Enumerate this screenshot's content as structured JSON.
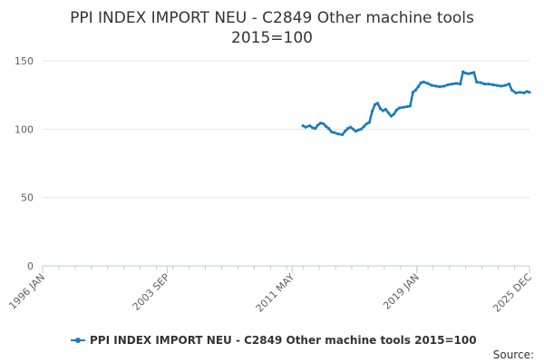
{
  "chart_data": {
    "type": "line",
    "title": "PPI INDEX IMPORT NEU - C2849 Other machine tools",
    "subtitle": "2015=100",
    "xlabel": "",
    "ylabel": "",
    "x_range": [
      "1996-01",
      "2025-12"
    ],
    "x_tick_labels": [
      "1996 JAN",
      "2003 SEP",
      "2011 MAY",
      "2019 JAN",
      "2025 DEC"
    ],
    "x_tick_dates": [
      "1996-01",
      "2003-09",
      "2011-05",
      "2019-01",
      "2025-12"
    ],
    "ylim": [
      0,
      150
    ],
    "y_ticks": [
      0,
      50,
      100,
      150
    ],
    "y_tick_labels": [
      "0",
      "50",
      "100",
      "150"
    ],
    "grid": "horizontal",
    "legend_position": "bottom",
    "source_label": "Source:",
    "series": [
      {
        "name": "PPI INDEX IMPORT NEU - C2849 Other machine tools 2015=100",
        "color": "#1a7bbf",
        "points": [
          [
            "2012-01",
            102.5
          ],
          [
            "2012-03",
            101.5
          ],
          [
            "2012-06",
            102.5
          ],
          [
            "2012-08",
            101.0
          ],
          [
            "2012-10",
            100.5
          ],
          [
            "2012-12",
            103.0
          ],
          [
            "2013-02",
            104.5
          ],
          [
            "2013-04",
            104.0
          ],
          [
            "2013-06",
            102.0
          ],
          [
            "2013-08",
            100.5
          ],
          [
            "2013-10",
            98.0
          ],
          [
            "2013-12",
            97.5
          ],
          [
            "2014-03",
            96.5
          ],
          [
            "2014-06",
            96.0
          ],
          [
            "2014-08",
            98.5
          ],
          [
            "2014-10",
            100.5
          ],
          [
            "2014-12",
            101.5
          ],
          [
            "2015-02",
            100.0
          ],
          [
            "2015-04",
            98.5
          ],
          [
            "2015-06",
            99.5
          ],
          [
            "2015-08",
            100.0
          ],
          [
            "2015-10",
            102.0
          ],
          [
            "2015-12",
            104.0
          ],
          [
            "2016-02",
            105.0
          ],
          [
            "2016-04",
            113.0
          ],
          [
            "2016-06",
            118.0
          ],
          [
            "2016-08",
            119.0
          ],
          [
            "2016-10",
            115.0
          ],
          [
            "2016-12",
            113.5
          ],
          [
            "2017-02",
            114.5
          ],
          [
            "2017-04",
            112.0
          ],
          [
            "2017-06",
            109.5
          ],
          [
            "2017-08",
            111.0
          ],
          [
            "2017-10",
            114.0
          ],
          [
            "2017-12",
            115.5
          ],
          [
            "2018-03",
            116.0
          ],
          [
            "2018-06",
            116.5
          ],
          [
            "2018-08",
            117.0
          ],
          [
            "2018-10",
            127.0
          ],
          [
            "2018-12",
            128.5
          ],
          [
            "2019-02",
            131.0
          ],
          [
            "2019-04",
            134.0
          ],
          [
            "2019-06",
            134.5
          ],
          [
            "2019-09",
            133.5
          ],
          [
            "2019-12",
            132.0
          ],
          [
            "2020-03",
            131.5
          ],
          [
            "2020-06",
            131.0
          ],
          [
            "2020-09",
            131.5
          ],
          [
            "2020-12",
            132.5
          ],
          [
            "2021-03",
            133.0
          ],
          [
            "2021-06",
            133.5
          ],
          [
            "2021-09",
            133.0
          ],
          [
            "2021-11",
            142.0
          ],
          [
            "2022-01",
            141.0
          ],
          [
            "2022-03",
            140.5
          ],
          [
            "2022-05",
            141.0
          ],
          [
            "2022-07",
            141.5
          ],
          [
            "2022-09",
            134.5
          ],
          [
            "2022-12",
            134.0
          ],
          [
            "2023-03",
            133.0
          ],
          [
            "2023-06",
            133.0
          ],
          [
            "2023-09",
            132.5
          ],
          [
            "2023-12",
            132.0
          ],
          [
            "2024-03",
            131.5
          ],
          [
            "2024-06",
            132.0
          ],
          [
            "2024-09",
            133.0
          ],
          [
            "2024-11",
            128.5
          ],
          [
            "2025-02",
            126.5
          ],
          [
            "2025-05",
            127.0
          ],
          [
            "2025-08",
            126.5
          ],
          [
            "2025-10",
            127.5
          ],
          [
            "2025-12",
            127.0
          ]
        ]
      }
    ]
  }
}
